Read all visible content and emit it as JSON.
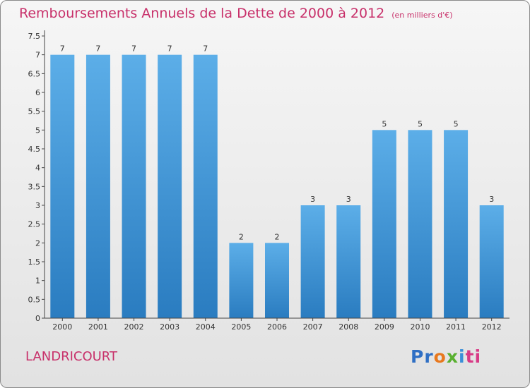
{
  "title": "Remboursements Annuels de la Dette de 2000 à 2012",
  "unit_note": "(en milliers d'€)",
  "commune": "LANDRICOURT",
  "logo": {
    "text": "Proxiti",
    "colors": [
      "#2f6fc4",
      "#e8781e",
      "#59b030",
      "#3b8fd8",
      "#d83a86"
    ]
  },
  "chart_data": {
    "type": "bar",
    "title": "Remboursements Annuels de la Dette de 2000 à 2012",
    "subtitle": "(en milliers d'€)",
    "xlabel": "",
    "ylabel": "",
    "categories": [
      "2000",
      "2001",
      "2002",
      "2003",
      "2004",
      "2005",
      "2006",
      "2007",
      "2008",
      "2009",
      "2010",
      "2011",
      "2012"
    ],
    "values": [
      7,
      7,
      7,
      7,
      7,
      2,
      2,
      3,
      3,
      5,
      5,
      5,
      3
    ],
    "data_labels": [
      "7",
      "7",
      "7",
      "7",
      "7",
      "2",
      "2",
      "3",
      "3",
      "5",
      "5",
      "5",
      "3"
    ],
    "ylim": [
      0,
      7.5
    ],
    "yticks": [
      0,
      0.5,
      1,
      1.5,
      2,
      2.5,
      3,
      3.5,
      4,
      4.5,
      5,
      5.5,
      6,
      6.5,
      7,
      7.5
    ],
    "ytick_labels": [
      "0",
      "0.5",
      "1",
      "1.5",
      "2",
      "2.5",
      "3",
      "3.5",
      "4",
      "4.5",
      "5",
      "5.5",
      "6",
      "6.5",
      "7",
      "7.5"
    ],
    "grid": false,
    "legend": "none",
    "bar_color_top": "#5caee8",
    "bar_color_bottom": "#2a7cc0"
  }
}
